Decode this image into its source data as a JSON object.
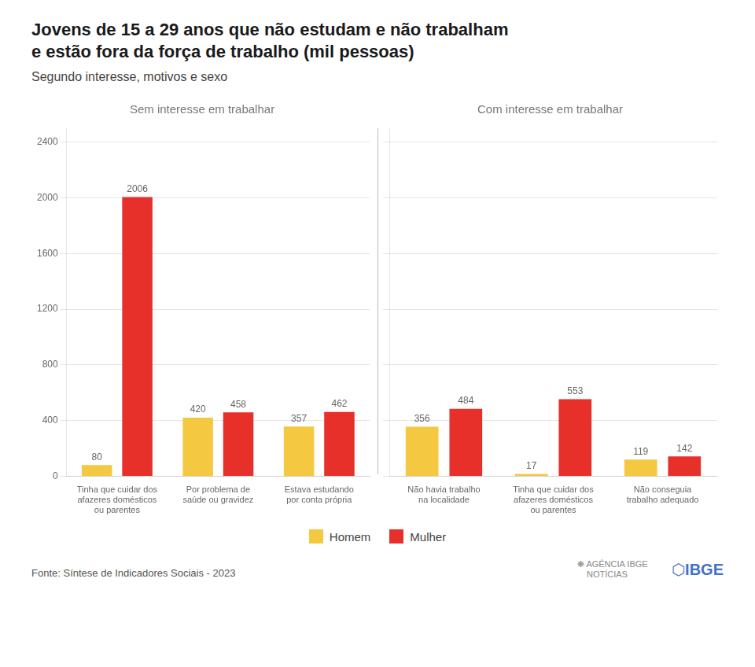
{
  "title": "Jovens de 15 a 29 anos que não estudam e não trabalham\ne estão fora da força de trabalho (mil pessoas)",
  "subtitle": "Segundo interesse, motivos e sexo",
  "legend": "bottom",
  "annotations": [
    "Fonte: Síntese de Indicadores Sociais - 2023",
    "❋ AGÊNCIA IBGE\n    NOTÍCIAS",
    "⬡IBGE"
  ],
  "chart_data": [
    {
      "type": "bar",
      "title": "Sem interesse em trabalhar",
      "categories": [
        "Tinha que cuidar dos\nafazeres domésticos\nou parentes",
        "Por problema de\nsaúde ou gravidez",
        "Estava estudando\npor conta própria"
      ],
      "series": [
        {
          "name": "Homem",
          "color": "#F5C842",
          "values": [
            80,
            420,
            357
          ]
        },
        {
          "name": "Mulher",
          "color": "#E8302A",
          "values": [
            2006,
            458,
            462
          ]
        }
      ],
      "ylim": [
        0,
        2500
      ],
      "yticks": [
        0,
        400,
        800,
        1200,
        1600,
        2000,
        2400
      ],
      "grid": true,
      "data_labels": true
    },
    {
      "type": "bar",
      "title": "Com interesse em trabalhar",
      "categories": [
        "Não havia trabalho\nna localidade",
        "Tinha que cuidar dos\nafazeres domésticos\nou parentes",
        "Não conseguia\ntrabalho adequado"
      ],
      "series": [
        {
          "name": "Homem",
          "color": "#F5C842",
          "values": [
            356,
            17,
            119
          ]
        },
        {
          "name": "Mulher",
          "color": "#E8302A",
          "values": [
            484,
            553,
            142
          ]
        }
      ],
      "ylim": [
        0,
        2500
      ],
      "yticks": [
        0,
        400,
        800,
        1200,
        1600,
        2000,
        2400
      ],
      "grid": true,
      "data_labels": true,
      "tick_labels": "x"
    }
  ]
}
